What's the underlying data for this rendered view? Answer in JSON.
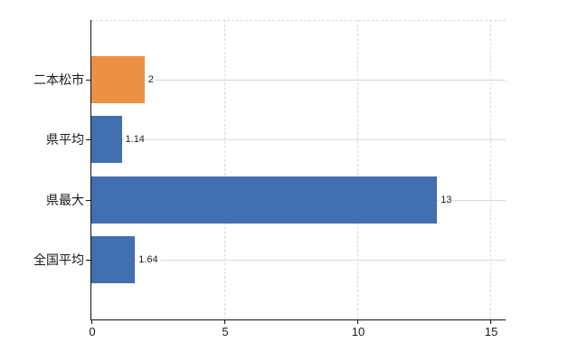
{
  "chart_data": {
    "type": "bar",
    "orientation": "horizontal",
    "title": "",
    "xlabel": "",
    "ylabel": "",
    "categories": [
      "二本松市",
      "県平均",
      "県最大",
      "全国平均"
    ],
    "values": [
      2,
      1.14,
      13,
      1.64
    ],
    "value_labels": [
      "2",
      "1.14",
      "13",
      "1.64"
    ],
    "bar_colors": [
      "#EC9143",
      "#4170B0",
      "#4170B0",
      "#4170B0"
    ],
    "x_ticks": [
      0,
      5,
      10,
      15
    ],
    "x_tick_labels": [
      "0",
      "5",
      "10",
      "15"
    ],
    "xlim": [
      0,
      15.6
    ],
    "grid": true,
    "legend": false,
    "grid_color": "#d9d9d9",
    "axis_color": "#111111",
    "text_color": "#1a1a1a",
    "value_text_color": "#222222",
    "background": "#ffffff"
  }
}
